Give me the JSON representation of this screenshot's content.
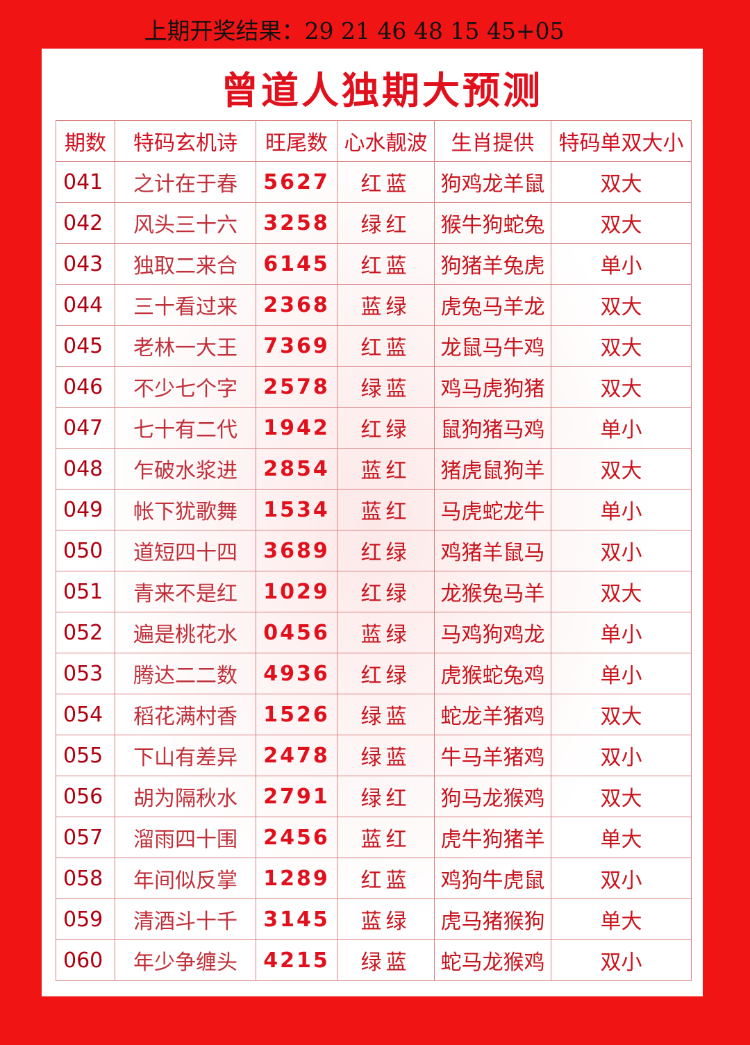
{
  "header": {
    "result": "上期开奖结果：29 21 46 48 15 45+05",
    "title": "曾道人独期大预测"
  },
  "table": {
    "columns": [
      "期数",
      "特码玄机诗",
      "旺尾数",
      "心水靓波",
      "生肖提供",
      "特码单双大小"
    ],
    "rows": [
      [
        "041",
        "之计在于春",
        "5627",
        "红蓝",
        "狗鸡龙羊鼠",
        "双大"
      ],
      [
        "042",
        "风头三十六",
        "3258",
        "绿红",
        "猴牛狗蛇兔",
        "双大"
      ],
      [
        "043",
        "独取二来合",
        "6145",
        "红蓝",
        "狗猪羊兔虎",
        "单小"
      ],
      [
        "044",
        "三十看过来",
        "2368",
        "蓝绿",
        "虎兔马羊龙",
        "双大"
      ],
      [
        "045",
        "老林一大王",
        "7369",
        "红蓝",
        "龙鼠马牛鸡",
        "双大"
      ],
      [
        "046",
        "不少七个字",
        "2578",
        "绿蓝",
        "鸡马虎狗猪",
        "双大"
      ],
      [
        "047",
        "七十有二代",
        "1942",
        "红绿",
        "鼠狗猪马鸡",
        "单小"
      ],
      [
        "048",
        "乍破水浆进",
        "2854",
        "蓝红",
        "猪虎鼠狗羊",
        "双大"
      ],
      [
        "049",
        "帐下犹歌舞",
        "1534",
        "蓝红",
        "马虎蛇龙牛",
        "单小"
      ],
      [
        "050",
        "道短四十四",
        "3689",
        "红绿",
        "鸡猪羊鼠马",
        "双小"
      ],
      [
        "051",
        "青来不是红",
        "1029",
        "红绿",
        "龙猴兔马羊",
        "双大"
      ],
      [
        "052",
        "遍是桃花水",
        "0456",
        "蓝绿",
        "马鸡狗鸡龙",
        "单小"
      ],
      [
        "053",
        "腾达二二数",
        "4936",
        "红绿",
        "虎猴蛇兔鸡",
        "单小"
      ],
      [
        "054",
        "稻花满村香",
        "1526",
        "绿蓝",
        "蛇龙羊猪鸡",
        "双大"
      ],
      [
        "055",
        "下山有差异",
        "2478",
        "绿蓝",
        "牛马羊猪鸡",
        "双小"
      ],
      [
        "056",
        "胡为隔秋水",
        "2791",
        "绿红",
        "狗马龙猴鸡",
        "双大"
      ],
      [
        "057",
        "溜雨四十围",
        "2456",
        "蓝红",
        "虎牛狗猪羊",
        "单大"
      ],
      [
        "058",
        "年间似反掌",
        "1289",
        "红蓝",
        "鸡狗牛虎鼠",
        "双小"
      ],
      [
        "059",
        "清酒斗十千",
        "3145",
        "蓝绿",
        "虎马猪猴狗",
        "单大"
      ],
      [
        "060",
        "年少争缠头",
        "4215",
        "绿蓝",
        "蛇马龙猴鸡",
        "双小"
      ]
    ]
  }
}
